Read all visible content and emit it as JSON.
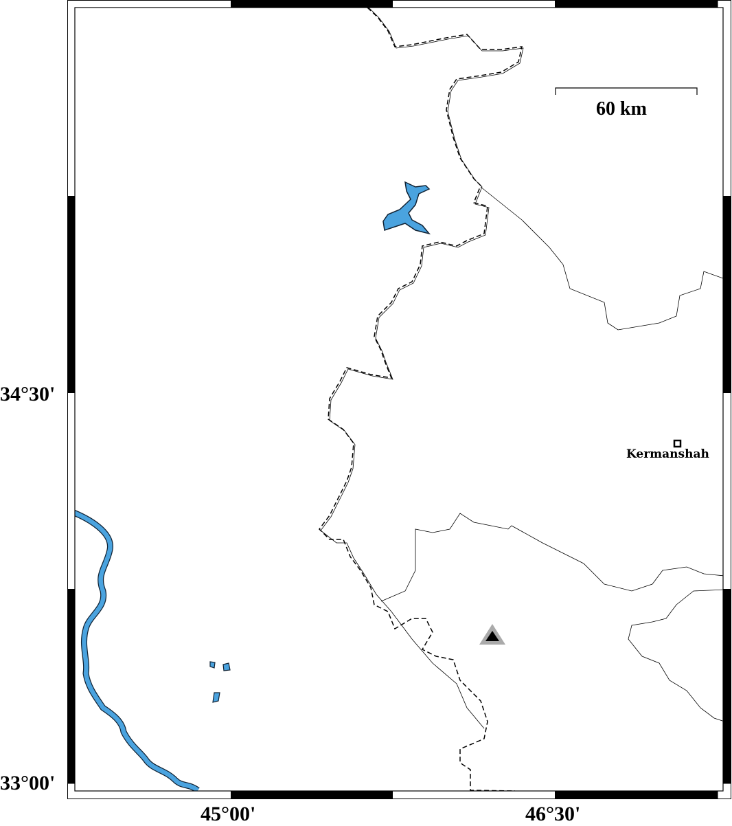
{
  "map": {
    "axis_labels": {
      "left": [
        "34°30'",
        "33°00'"
      ],
      "bottom": [
        "45°00'",
        "46°30'"
      ]
    },
    "scale_bar": {
      "label": "60 km"
    },
    "cities": [
      {
        "name": "Kermanshah",
        "symbol": "square-icon"
      }
    ],
    "markers": [
      {
        "symbol": "triangle-icon",
        "fill": "#000000",
        "outline": "#aaaaaa"
      }
    ],
    "colors": {
      "water": "#4aa3df",
      "border": "#000000",
      "frame": "#000000"
    }
  }
}
